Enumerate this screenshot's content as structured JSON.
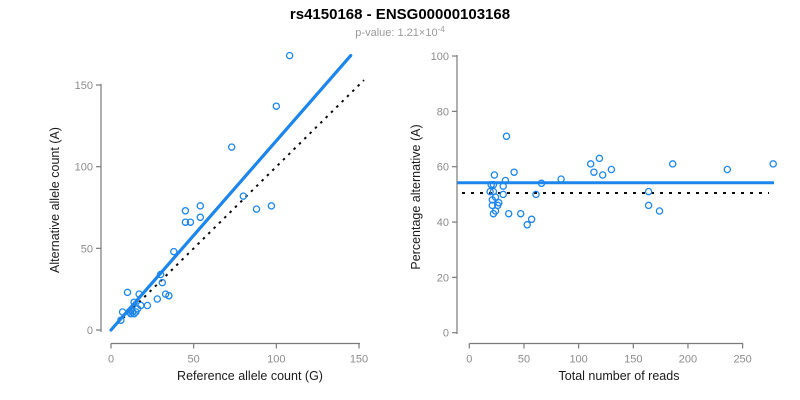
{
  "header": {
    "title": "rs4150168 - ENSG00000103168",
    "pvalue_text": "p-value: 1.21×10",
    "pvalue_exponent": "-4"
  },
  "colors": {
    "accent_blue": "#1c86ee",
    "dotted_line_black": "#0a0a0a",
    "axis_line_gray": "#7a7a7a",
    "tick_label_gray": "#8c8c8c",
    "axis_title_color": "#1a1a1a",
    "subtitle_gray": "#9a9a9a"
  },
  "chart_data": [
    {
      "type": "scatter",
      "name": "allele-counts-scatter",
      "xlabel": "Reference allele count (G)",
      "ylabel": "Alternative allele count (A)",
      "xlim": [
        0,
        150
      ],
      "ylim": [
        0,
        168
      ],
      "xticks": [
        0,
        50,
        100,
        150
      ],
      "yticks": [
        0,
        50,
        100,
        150
      ],
      "grid": false,
      "legend": null,
      "points": [
        [
          108,
          168
        ],
        [
          100,
          137
        ],
        [
          73,
          112
        ],
        [
          80,
          82
        ],
        [
          88,
          74
        ],
        [
          97,
          76
        ],
        [
          45,
          73
        ],
        [
          54,
          76
        ],
        [
          54,
          69
        ],
        [
          45,
          66
        ],
        [
          48,
          66
        ],
        [
          38,
          48
        ],
        [
          30,
          34
        ],
        [
          31,
          29
        ],
        [
          10,
          23
        ],
        [
          17,
          22
        ],
        [
          33,
          22
        ],
        [
          35,
          21
        ],
        [
          28,
          19
        ],
        [
          14,
          17
        ],
        [
          18,
          15
        ],
        [
          22,
          15
        ],
        [
          16,
          13
        ],
        [
          12,
          12
        ],
        [
          11,
          11
        ],
        [
          13,
          11
        ],
        [
          15,
          11
        ],
        [
          12,
          10
        ],
        [
          14,
          10
        ],
        [
          7,
          11
        ],
        [
          6,
          6
        ]
      ],
      "fit_line": {
        "style": "solid",
        "x1": 0,
        "y1": 0,
        "x2": 145,
        "y2": 168
      },
      "identity_line": {
        "style": "dotted",
        "x1": 4,
        "y1": 4,
        "x2": 153,
        "y2": 153
      }
    },
    {
      "type": "scatter",
      "name": "percentage-vs-reads-scatter",
      "xlabel": "Total number of reads",
      "ylabel": "Percentage alternative (A)",
      "xlim": [
        0,
        250
      ],
      "ylim": [
        0,
        100
      ],
      "xticks": [
        0,
        50,
        100,
        150,
        200,
        250
      ],
      "yticks": [
        0,
        20,
        40,
        60,
        80,
        100
      ],
      "grid": false,
      "legend": null,
      "points": [
        [
          34,
          71
        ],
        [
          23,
          57
        ],
        [
          41,
          58
        ],
        [
          33,
          55
        ],
        [
          20,
          53.5
        ],
        [
          22,
          53.5
        ],
        [
          31,
          53
        ],
        [
          19,
          51
        ],
        [
          22,
          51
        ],
        [
          31,
          50
        ],
        [
          24,
          49
        ],
        [
          21,
          48
        ],
        [
          27,
          47
        ],
        [
          21,
          46
        ],
        [
          26,
          46
        ],
        [
          24,
          44
        ],
        [
          22,
          43
        ],
        [
          36,
          43
        ],
        [
          47,
          43
        ],
        [
          57,
          41
        ],
        [
          53,
          39
        ],
        [
          61,
          50
        ],
        [
          66,
          54
        ],
        [
          84,
          55.5
        ],
        [
          111,
          61
        ],
        [
          114,
          58
        ],
        [
          119,
          63
        ],
        [
          122,
          57
        ],
        [
          130,
          59
        ],
        [
          164,
          51
        ],
        [
          164,
          46
        ],
        [
          174,
          44
        ],
        [
          186,
          61
        ],
        [
          236,
          59
        ],
        [
          278,
          61
        ]
      ],
      "fit_line": {
        "style": "solid",
        "y": 54.2
      },
      "null_line": {
        "style": "dotted",
        "y": 50.5
      }
    }
  ]
}
